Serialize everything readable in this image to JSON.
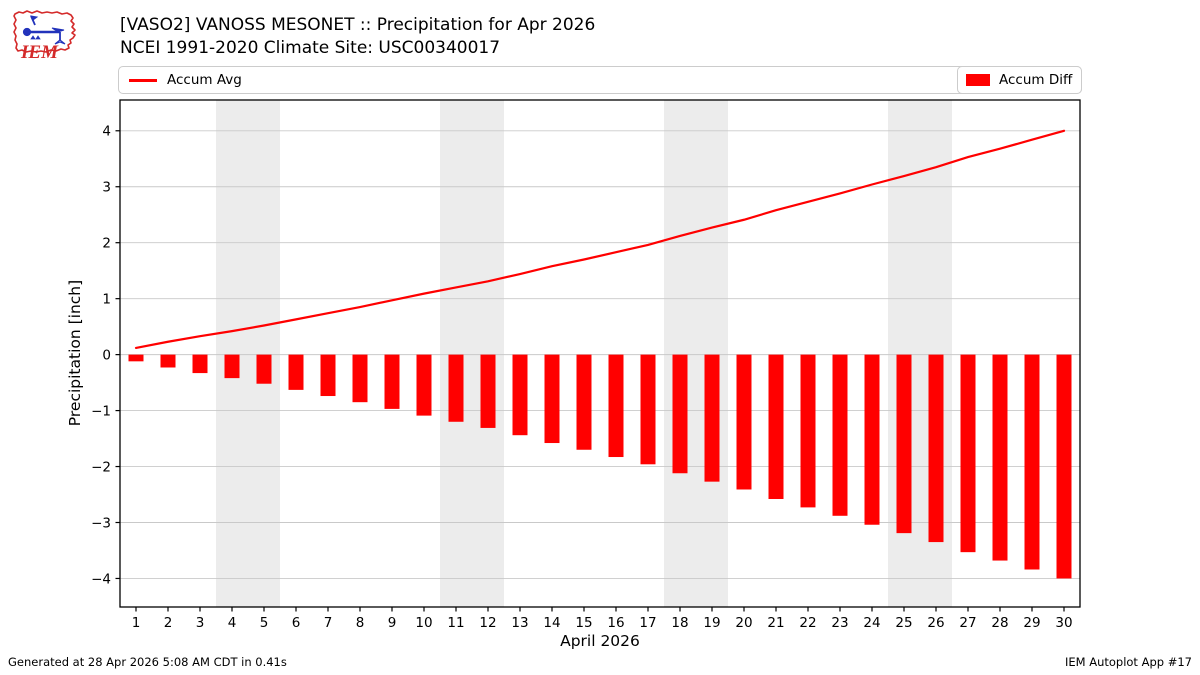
{
  "header": {
    "title_line1": "[VASO2] VANOSS MESONET :: Precipitation for Apr 2026",
    "title_line2": "NCEI 1991-2020 Climate Site: USC00340017",
    "logo_text": "IEM"
  },
  "legend": {
    "avg_label": "Accum Avg",
    "diff_label": "Accum Diff"
  },
  "footer": {
    "left": "Generated at 28 Apr 2026 5:08 AM CDT in 0.41s",
    "right": "IEM Autoplot App #17"
  },
  "colors": {
    "accent_red": "#ff0000",
    "weekend_band": "#ececec",
    "gridline": "#c9c9c9",
    "frame": "#000000",
    "logo_red": "#d42a2a",
    "logo_blue": "#2233bb"
  },
  "chart_data": {
    "type": "bar",
    "title": "[VASO2] VANOSS MESONET :: Precipitation for Apr 2026",
    "subtitle": "NCEI 1991-2020 Climate Site: USC00340017",
    "xlabel": "April 2026",
    "ylabel": "Precipitation [inch]",
    "xlim": [
      0.5,
      30.5
    ],
    "ylim": [
      -4.51,
      4.55
    ],
    "yticks": [
      -4,
      -3,
      -2,
      -1,
      0,
      1,
      2,
      3,
      4
    ],
    "grid": true,
    "legend_position": "top",
    "weekend_bands": [
      [
        3.5,
        5.5
      ],
      [
        10.5,
        12.5
      ],
      [
        17.5,
        19.5
      ],
      [
        24.5,
        26.5
      ]
    ],
    "x": [
      1,
      2,
      3,
      4,
      5,
      6,
      7,
      8,
      9,
      10,
      11,
      12,
      13,
      14,
      15,
      16,
      17,
      18,
      19,
      20,
      21,
      22,
      23,
      24,
      25,
      26,
      27,
      28,
      29,
      30
    ],
    "series": [
      {
        "name": "Accum Avg",
        "type": "line",
        "color": "#ff0000",
        "values": [
          0.12,
          0.23,
          0.33,
          0.42,
          0.52,
          0.63,
          0.74,
          0.85,
          0.97,
          1.09,
          1.2,
          1.31,
          1.44,
          1.58,
          1.7,
          1.83,
          1.96,
          2.12,
          2.27,
          2.41,
          2.58,
          2.73,
          2.88,
          3.04,
          3.19,
          3.35,
          3.53,
          3.68,
          3.84,
          4.0
        ]
      },
      {
        "name": "Accum Diff",
        "type": "bar",
        "color": "#ff0000",
        "values": [
          -0.12,
          -0.23,
          -0.33,
          -0.42,
          -0.52,
          -0.63,
          -0.74,
          -0.85,
          -0.97,
          -1.09,
          -1.2,
          -1.31,
          -1.44,
          -1.58,
          -1.7,
          -1.83,
          -1.96,
          -2.12,
          -2.27,
          -2.41,
          -2.58,
          -2.73,
          -2.88,
          -3.04,
          -3.19,
          -3.35,
          -3.53,
          -3.68,
          -3.84,
          -4.0
        ]
      }
    ]
  }
}
